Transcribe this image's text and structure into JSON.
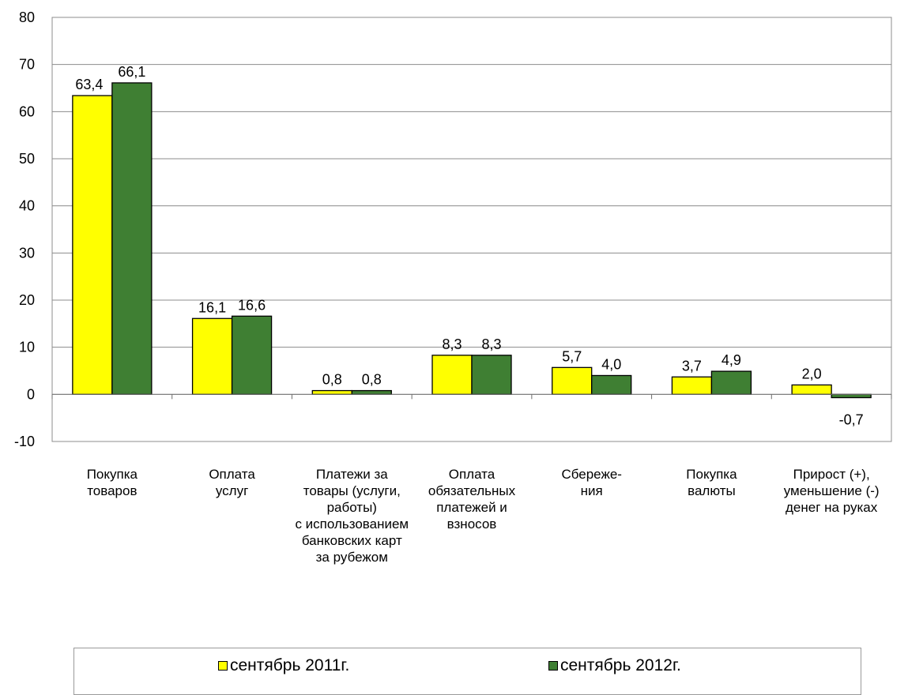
{
  "chart_data": {
    "type": "bar",
    "title": "",
    "xlabel": "",
    "ylabel": "",
    "ylim": [
      -10,
      80
    ],
    "yticks": [
      "80",
      "70",
      "60",
      "50",
      "40",
      "30",
      "20",
      "10",
      "0",
      "-10"
    ],
    "grid": true,
    "legend_position": "bottom",
    "categories": [
      "Покупка\nтоваров",
      "Оплата\nуслуг",
      "Платежи за\nтовары (услуги,\nработы)\nс использованием\nбанковских карт\nза рубежом",
      "Оплата\nобязательных\nплатежей и\nвзносов",
      "Сбереже-\nния",
      "Покупка\nвалюты",
      "Прирост (+),\nуменьшение (-)\nденег на руках"
    ],
    "series": [
      {
        "name": "сентябрь 2011г.",
        "color": "#ffff00",
        "values": [
          63.4,
          16.1,
          0.8,
          8.3,
          5.7,
          3.7,
          2.0
        ],
        "labels": [
          "63,4",
          "16,1",
          "0,8",
          "8,3",
          "5,7",
          "3,7",
          "2,0"
        ]
      },
      {
        "name": "сентябрь 2012г.",
        "color": "#3f7f33",
        "values": [
          66.1,
          16.6,
          0.8,
          8.3,
          4.0,
          4.9,
          -0.7
        ],
        "labels": [
          "66,1",
          "16,6",
          "0,8",
          "8,3",
          "4,0",
          "4,9",
          "-0,7"
        ]
      }
    ]
  }
}
